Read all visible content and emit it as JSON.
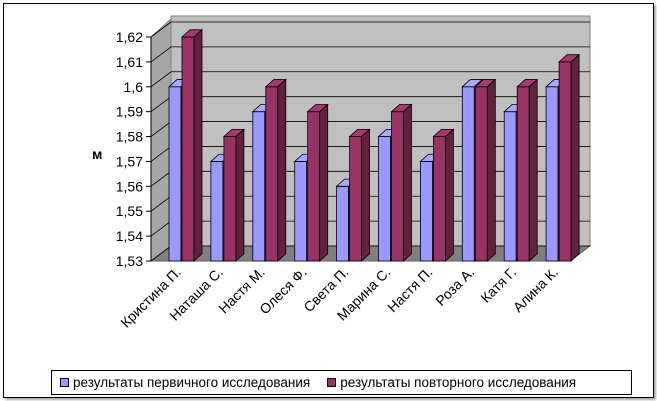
{
  "chart_data": {
    "type": "bar",
    "ylabel": "м",
    "ylim": [
      1.53,
      1.62
    ],
    "yticks": [
      "1,53",
      "1,54",
      "1,55",
      "1,56",
      "1,57",
      "1,58",
      "1,59",
      "1,6",
      "1,61",
      "1,62"
    ],
    "categories": [
      "Кристина П.",
      "Наташа С.",
      "Настя М.",
      "Олеся Ф.",
      "Света П.",
      "Марина С.",
      "Настя П.",
      "Роза А.",
      "Катя Г.",
      "Алина К."
    ],
    "series": [
      {
        "name": "результаты первичного исследования",
        "color": "#9999ff",
        "values": [
          1.6,
          1.57,
          1.59,
          1.57,
          1.56,
          1.58,
          1.57,
          1.6,
          1.59,
          1.6
        ]
      },
      {
        "name": "результаты повторного исследования",
        "color": "#993366",
        "values": [
          1.62,
          1.58,
          1.6,
          1.59,
          1.58,
          1.59,
          1.58,
          1.6,
          1.6,
          1.61
        ]
      }
    ],
    "grid": true,
    "legend_position": "bottom"
  }
}
